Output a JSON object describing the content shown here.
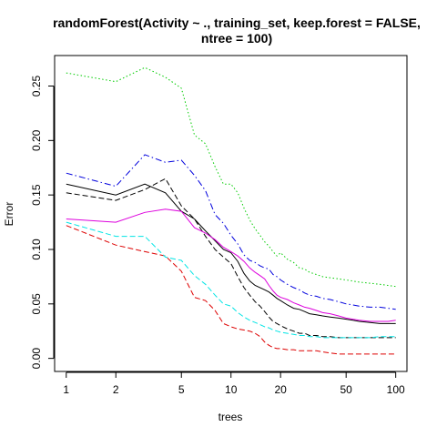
{
  "chart_data": {
    "type": "line",
    "title": "randomForest(Activity ~ ., training_set, keep.forest = FALSE,",
    "title_line2": "ntree = 100)",
    "xlabel": "trees",
    "ylabel": "Error",
    "x_scale": "log",
    "xlim": [
      0.85,
      117
    ],
    "ylim": [
      -0.012,
      0.278
    ],
    "x_ticks": [
      1,
      2,
      5,
      10,
      20,
      50,
      100
    ],
    "x_tick_labels": [
      "1",
      "2",
      "5",
      "10",
      "20",
      "50",
      "100"
    ],
    "y_ticks": [
      0.0,
      0.05,
      0.1,
      0.15,
      0.2,
      0.25
    ],
    "y_tick_labels": [
      "0.00",
      "0.05",
      "0.10",
      "0.15",
      "0.20",
      "0.25"
    ],
    "legend": "none",
    "x": [
      1,
      2,
      3,
      4,
      5,
      6,
      7,
      8,
      9,
      10,
      11,
      12,
      13,
      14,
      15,
      16,
      17,
      18,
      19,
      20,
      22,
      24,
      26,
      28,
      30,
      33,
      36,
      40,
      45,
      50,
      55,
      60,
      70,
      80,
      90,
      100
    ],
    "series": [
      {
        "color": "#000000",
        "style": "solid",
        "values": [
          0.16,
          0.15,
          0.16,
          0.152,
          0.135,
          0.128,
          0.117,
          0.108,
          0.1,
          0.097,
          0.089,
          0.078,
          0.071,
          0.067,
          0.065,
          0.063,
          0.061,
          0.058,
          0.055,
          0.053,
          0.049,
          0.046,
          0.045,
          0.043,
          0.041,
          0.04,
          0.039,
          0.038,
          0.037,
          0.036,
          0.035,
          0.034,
          0.033,
          0.032,
          0.032,
          0.032
        ]
      },
      {
        "color": "#000000",
        "style": "dashed",
        "values": [
          0.152,
          0.145,
          0.155,
          0.165,
          0.14,
          0.128,
          0.112,
          0.1,
          0.093,
          0.087,
          0.075,
          0.065,
          0.058,
          0.052,
          0.048,
          0.043,
          0.038,
          0.034,
          0.032,
          0.03,
          0.027,
          0.025,
          0.023,
          0.023,
          0.021,
          0.021,
          0.02,
          0.02,
          0.019,
          0.019,
          0.019,
          0.019,
          0.019,
          0.019,
          0.019,
          0.019
        ]
      },
      {
        "color": "#dd0000",
        "style": "dashed",
        "values": [
          0.122,
          0.104,
          0.098,
          0.094,
          0.08,
          0.056,
          0.053,
          0.044,
          0.032,
          0.029,
          0.027,
          0.026,
          0.025,
          0.023,
          0.02,
          0.015,
          0.012,
          0.01,
          0.009,
          0.009,
          0.008,
          0.008,
          0.007,
          0.007,
          0.007,
          0.007,
          0.006,
          0.005,
          0.004,
          0.004,
          0.004,
          0.004,
          0.004,
          0.004,
          0.004,
          0.004
        ]
      },
      {
        "color": "#00cc00",
        "style": "dotted",
        "values": [
          0.262,
          0.254,
          0.267,
          0.258,
          0.248,
          0.205,
          0.197,
          0.176,
          0.16,
          0.16,
          0.152,
          0.138,
          0.127,
          0.119,
          0.113,
          0.107,
          0.103,
          0.098,
          0.094,
          0.097,
          0.091,
          0.088,
          0.083,
          0.082,
          0.079,
          0.077,
          0.075,
          0.074,
          0.073,
          0.072,
          0.071,
          0.07,
          0.069,
          0.068,
          0.067,
          0.066
        ]
      },
      {
        "color": "#0000dd",
        "style": "dashdot",
        "values": [
          0.17,
          0.158,
          0.187,
          0.18,
          0.182,
          0.168,
          0.154,
          0.132,
          0.124,
          0.113,
          0.105,
          0.095,
          0.09,
          0.088,
          0.085,
          0.083,
          0.082,
          0.077,
          0.075,
          0.072,
          0.068,
          0.065,
          0.063,
          0.06,
          0.058,
          0.057,
          0.055,
          0.054,
          0.052,
          0.05,
          0.049,
          0.048,
          0.047,
          0.047,
          0.046,
          0.045
        ]
      },
      {
        "color": "#00e5e5",
        "style": "dashed",
        "values": [
          0.125,
          0.112,
          0.112,
          0.093,
          0.09,
          0.076,
          0.068,
          0.058,
          0.05,
          0.048,
          0.042,
          0.038,
          0.035,
          0.033,
          0.031,
          0.029,
          0.028,
          0.026,
          0.025,
          0.024,
          0.023,
          0.022,
          0.021,
          0.021,
          0.02,
          0.02,
          0.019,
          0.019,
          0.019,
          0.019,
          0.019,
          0.019,
          0.019,
          0.02,
          0.02,
          0.02
        ]
      },
      {
        "color": "#dd00dd",
        "style": "solid",
        "values": [
          0.128,
          0.125,
          0.134,
          0.137,
          0.135,
          0.12,
          0.115,
          0.109,
          0.102,
          0.098,
          0.094,
          0.089,
          0.083,
          0.079,
          0.076,
          0.073,
          0.067,
          0.062,
          0.058,
          0.056,
          0.054,
          0.051,
          0.049,
          0.047,
          0.046,
          0.044,
          0.042,
          0.041,
          0.039,
          0.037,
          0.036,
          0.035,
          0.034,
          0.034,
          0.034,
          0.035
        ]
      }
    ]
  }
}
